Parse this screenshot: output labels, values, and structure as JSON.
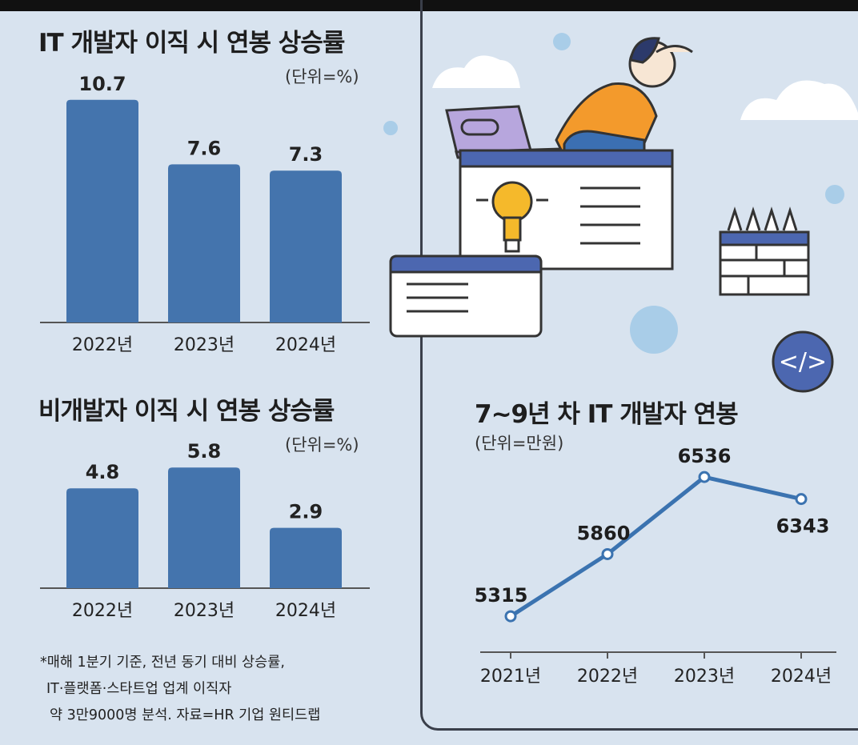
{
  "colors": {
    "bar": "#4474ad",
    "line": "#3b73b0",
    "background": "#d8e3ef",
    "axis": "#555555"
  },
  "chart_data": [
    {
      "type": "bar",
      "title": "IT 개발자 이직 시 연봉 상승률",
      "unit": "(단위=%)",
      "categories": [
        "2022년",
        "2023년",
        "2024년"
      ],
      "values": [
        10.7,
        7.6,
        7.3
      ],
      "value_labels": [
        "10.7",
        "7.6",
        "7.3"
      ],
      "ylim": [
        0,
        12.5
      ],
      "grid": false
    },
    {
      "type": "bar",
      "title": "비개발자 이직 시 연봉 상승률",
      "unit": "(단위=%)",
      "categories": [
        "2022년",
        "2023년",
        "2024년"
      ],
      "values": [
        4.8,
        5.8,
        2.9
      ],
      "value_labels": [
        "4.8",
        "5.8",
        "2.9"
      ],
      "ylim": [
        0,
        6.5
      ],
      "grid": false
    },
    {
      "type": "line",
      "title": "7~9년 차 IT 개발자 연봉",
      "unit": "(단위=만원)",
      "categories": [
        "2021년",
        "2022년",
        "2023년",
        "2024년"
      ],
      "values": [
        5315,
        5860,
        6536,
        6343
      ],
      "value_labels": [
        "5315",
        "5860",
        "6536",
        "6343"
      ],
      "ylim": [
        5000,
        7000
      ],
      "grid": false
    }
  ],
  "footnote": [
    "*매해 1분기 기준, 전년 동기 대비 상승률,",
    "IT·플랫폼·스타트업 업계 이직자",
    "약 3만9000명 분석. 자료=HR 기업 원티드랩"
  ],
  "illustration": {
    "code_icon_text": "</>"
  }
}
